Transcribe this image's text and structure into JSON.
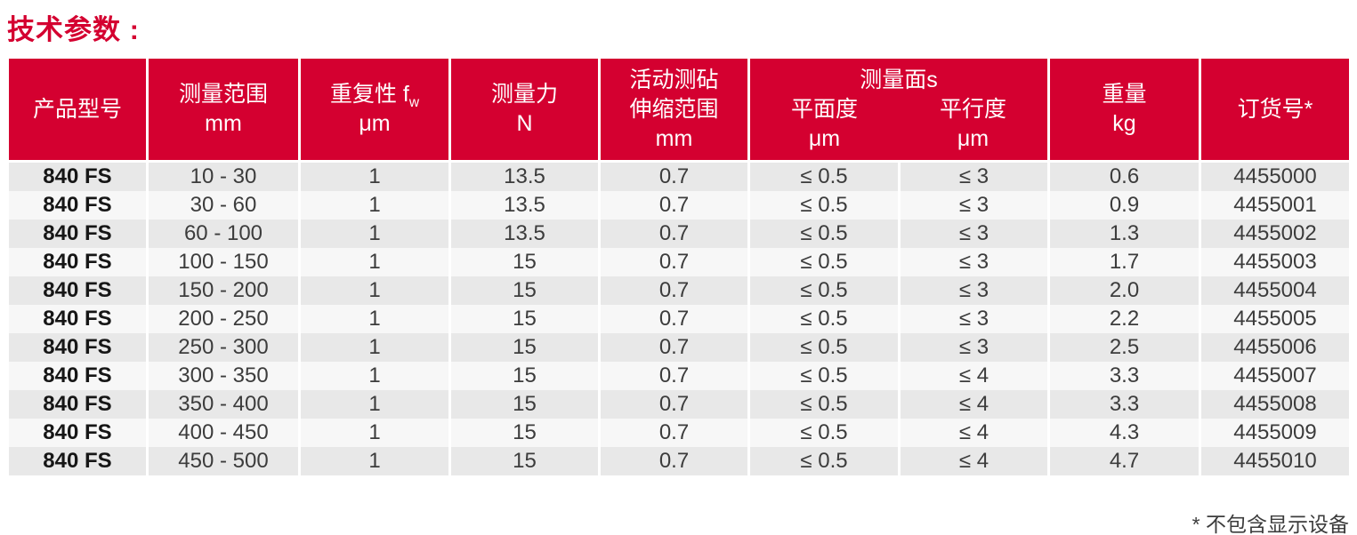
{
  "title": "技术参数 :",
  "columns": {
    "model": {
      "label": "产品型号"
    },
    "range": {
      "label": "测量范围",
      "unit": "mm"
    },
    "repeatability": {
      "label": "重复性 f",
      "sub": "w",
      "unit": "μm"
    },
    "force": {
      "label": "测量力",
      "unit": "N"
    },
    "anvil": {
      "line1": "活动测砧",
      "line2": "伸缩范围",
      "unit": "mm"
    },
    "surfaces": {
      "group": "测量面s",
      "flatness": "平面度",
      "flatness_unit": "μm",
      "parallelism": "平行度",
      "parallelism_unit": "μm"
    },
    "weight": {
      "label": "重量",
      "unit": "kg"
    },
    "order": {
      "label": "订货号*"
    }
  },
  "rows": [
    {
      "model": "840 FS",
      "range": "10 - 30",
      "repeatability": "1",
      "force": "13.5",
      "anvil": "0.7",
      "flatness": "≤ 0.5",
      "parallelism": "≤ 3",
      "weight": "0.6",
      "order": "4455000"
    },
    {
      "model": "840 FS",
      "range": "30 - 60",
      "repeatability": "1",
      "force": "13.5",
      "anvil": "0.7",
      "flatness": "≤ 0.5",
      "parallelism": "≤ 3",
      "weight": "0.9",
      "order": "4455001"
    },
    {
      "model": "840 FS",
      "range": "60 - 100",
      "repeatability": "1",
      "force": "13.5",
      "anvil": "0.7",
      "flatness": "≤ 0.5",
      "parallelism": "≤ 3",
      "weight": "1.3",
      "order": "4455002"
    },
    {
      "model": "840 FS",
      "range": "100 - 150",
      "repeatability": "1",
      "force": "15",
      "anvil": "0.7",
      "flatness": "≤ 0.5",
      "parallelism": "≤ 3",
      "weight": "1.7",
      "order": "4455003"
    },
    {
      "model": "840 FS",
      "range": "150 - 200",
      "repeatability": "1",
      "force": "15",
      "anvil": "0.7",
      "flatness": "≤ 0.5",
      "parallelism": "≤ 3",
      "weight": "2.0",
      "order": "4455004"
    },
    {
      "model": "840 FS",
      "range": "200 - 250",
      "repeatability": "1",
      "force": "15",
      "anvil": "0.7",
      "flatness": "≤ 0.5",
      "parallelism": "≤ 3",
      "weight": "2.2",
      "order": "4455005"
    },
    {
      "model": "840 FS",
      "range": "250 - 300",
      "repeatability": "1",
      "force": "15",
      "anvil": "0.7",
      "flatness": "≤ 0.5",
      "parallelism": "≤ 3",
      "weight": "2.5",
      "order": "4455006"
    },
    {
      "model": "840 FS",
      "range": "300 - 350",
      "repeatability": "1",
      "force": "15",
      "anvil": "0.7",
      "flatness": "≤ 0.5",
      "parallelism": "≤ 4",
      "weight": "3.3",
      "order": "4455007"
    },
    {
      "model": "840 FS",
      "range": "350 - 400",
      "repeatability": "1",
      "force": "15",
      "anvil": "0.7",
      "flatness": "≤ 0.5",
      "parallelism": "≤ 4",
      "weight": "3.3",
      "order": "4455008"
    },
    {
      "model": "840 FS",
      "range": "400 - 450",
      "repeatability": "1",
      "force": "15",
      "anvil": "0.7",
      "flatness": "≤ 0.5",
      "parallelism": "≤ 4",
      "weight": "4.3",
      "order": "4455009"
    },
    {
      "model": "840 FS",
      "range": "450 - 500",
      "repeatability": "1",
      "force": "15",
      "anvil": "0.7",
      "flatness": "≤ 0.5",
      "parallelism": "≤ 4",
      "weight": "4.7",
      "order": "4455010"
    }
  ],
  "footnote": "* 不包含显示设备",
  "colors": {
    "accent_red": "#D40030",
    "row_dark": "#E8E8E8",
    "row_light": "#F7F7F7",
    "header_text": "#FFFFFF",
    "body_text": "#3C3C3C"
  }
}
